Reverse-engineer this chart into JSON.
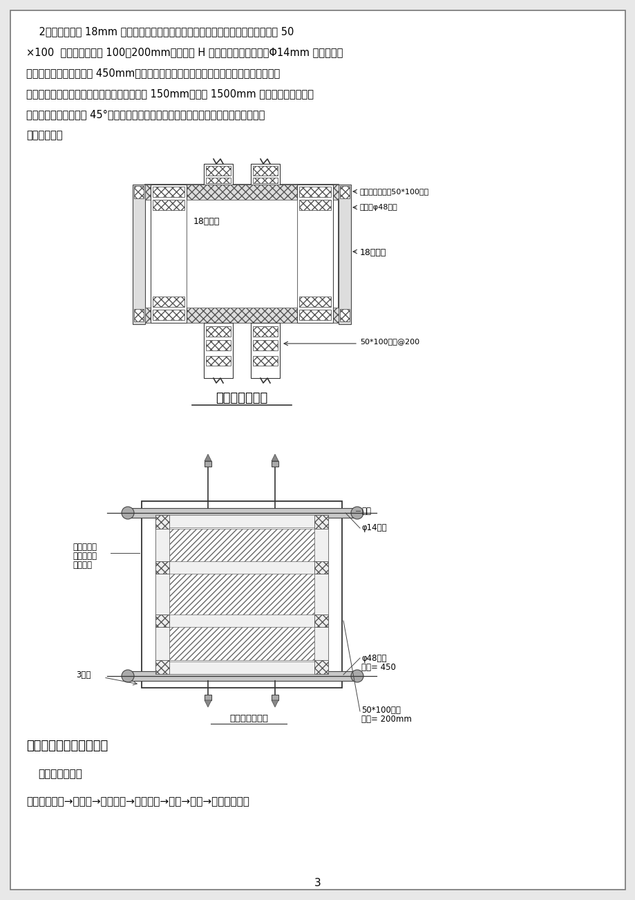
{
  "bg_color": "#e8e8e8",
  "page_bg": "#ffffff",
  "border_color": "#888888",
  "text_color": "#000000",
  "page_number": "3",
  "para_lines": [
    "    2、柱模板采用 18mm 胶合板，模板在木工车间制作施工现场组拼，竖向内楞采用 50",
    "×100  木方，竖向间距 100～200mm。柱截面 H 方向用钢管和可回收的Φ14mm 普通穿墙螺",
    "栓加固，上下间距不大于 450mm，四周加钢管抛撑。柱边角处采用木板条找补海棉条封",
    "堵，保证楞角方直、美观。斜向支撑，起步为 150mm，每隔 1500mm 一道，采用双向钢管",
    "对称斜向加固（尽量取 45°），柱与柱之间采用拉通线检查验收。柱模木楞盖住板缝，",
    "以减少漏浆。"
  ],
  "diag1_title": "梁柱节点大样图",
  "diag2_title": "柱模加固示意图",
  "ann1_1": "柱头模板拉结，50*100木方",
  "ann1_2": "梁侧模φ48钢管",
  "ann1_3": "18多层板",
  "ann1_4": "18多层板",
  "ann1_5": "50*100木方@200",
  "ann2_nut": "螺帽",
  "ann2_bolt": "φ14螺杆",
  "ann2_pipe": "φ48钢管",
  "ann2_gap1": "间距= 450",
  "ann2_timber": "50*100木楞",
  "ann2_gap2": "间距= 200mm",
  "ann2_left1": "柱角采用模",
  "ann2_left2": "板双重咬合",
  "ann2_left3": "以防漏浆",
  "ann2_clamp": "3型卡",
  "sec_title": "六、梁、现浇板模板安装",
  "subsec": "（一）工艺流程",
  "workflow": "搭设模板支撑→支梁模→放主龙骨→放次龙骨→铺板→预验→进入下道工序"
}
